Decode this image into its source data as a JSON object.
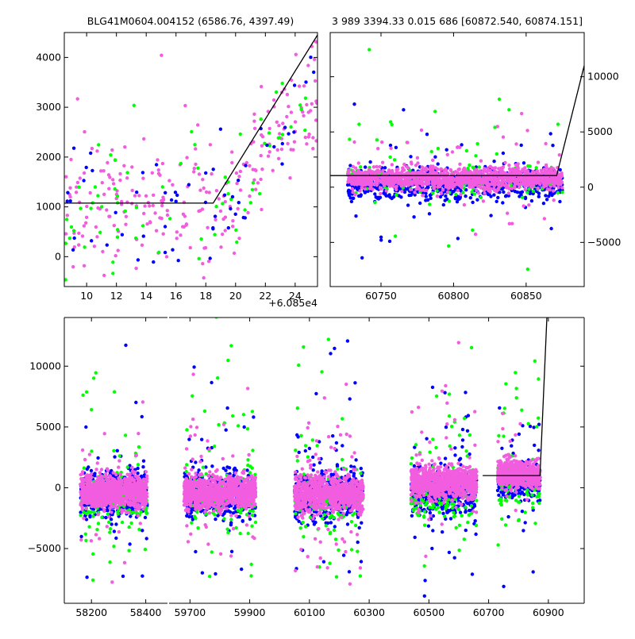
{
  "chart_data": [
    {
      "name": "zoom-left",
      "type": "scatter",
      "title": "BLG41M0604.004152 (6586.76, 4397.49)",
      "xlim": [
        8.5,
        25.5
      ],
      "ylim": [
        -600,
        4500
      ],
      "xticks": [
        10,
        12,
        14,
        16,
        18,
        20,
        22,
        24
      ],
      "xtick_labels": [
        "10",
        "12",
        "14",
        "16",
        "18",
        "20",
        "22",
        "24"
      ],
      "yticks": [
        0,
        1000,
        2000,
        3000,
        4000
      ],
      "ytick_labels": [
        "0",
        "1000",
        "2000",
        "3000",
        "4000"
      ],
      "x_offset_label": "+6.085e4",
      "ytick_side": "left",
      "model_line": {
        "x": [
          8.5,
          18.5,
          25.5
        ],
        "y": [
          1075,
          1075,
          4450
        ]
      },
      "scatter_groups": [
        {
          "color": "#f25de0",
          "count": 260,
          "segments": [
            [
              8.5,
              18.5,
              1075,
              600,
              0.07
            ],
            [
              18.5,
              25.5,
              1075,
              700,
              0.06
            ]
          ]
        },
        {
          "color": "#00ff00",
          "count": 70,
          "segments": [
            [
              8.5,
              18.5,
              1075,
              700,
              0.06
            ],
            [
              18.5,
              25.5,
              1075,
              700,
              0.06
            ]
          ]
        },
        {
          "color": "#0000ff",
          "count": 60,
          "segments": [
            [
              8.5,
              18.5,
              900,
              700,
              0.06
            ],
            [
              18.5,
              25.5,
              1000,
              700,
              0.06
            ]
          ]
        }
      ]
    },
    {
      "name": "zoom-right",
      "type": "scatter",
      "title": "3 989 3394.33 0.015 686 [60872.540, 60874.151]",
      "xlim": [
        60715,
        60890
      ],
      "ylim": [
        -9000,
        14000
      ],
      "xticks": [
        60750,
        60800,
        60850
      ],
      "xtick_labels": [
        "60750",
        "60800",
        "60850"
      ],
      "yticks": [
        -5000,
        0,
        5000,
        10000
      ],
      "ytick_labels": [
        "−5000",
        "0",
        "5000",
        "10000"
      ],
      "ytick_side": "right",
      "model_line": {
        "x": [
          60715,
          60871,
          60890
        ],
        "y": [
          1050,
          1050,
          11000
        ]
      },
      "scatter_groups": [
        {
          "color": "#0000ff",
          "count": 700,
          "segments": [
            [
              60727,
              60875,
              300,
              700,
              0.05
            ]
          ]
        },
        {
          "color": "#00ff00",
          "count": 160,
          "segments": [
            [
              60727,
              60875,
              500,
              800,
              0.22
            ]
          ]
        },
        {
          "color": "#f25de0",
          "count": 1300,
          "segments": [
            [
              60727,
              60875,
              800,
              500,
              0.05
            ]
          ]
        }
      ]
    },
    {
      "name": "full-lightcurve",
      "type": "scatter",
      "xlim": [
        0,
        1
      ],
      "ylim": [
        -9500,
        14000
      ],
      "x_breaks": [
        {
          "from": 58100,
          "to": 58480,
          "px": [
            81,
            211
          ]
        },
        {
          "from": 59630,
          "to": 61020,
          "px": [
            213,
            736
          ]
        }
      ],
      "xticks": [
        58200,
        58400,
        59700,
        59900,
        60100,
        60300,
        60500,
        60700,
        60900
      ],
      "xtick_labels": [
        "58200",
        "58400",
        "59700",
        "59900",
        "60100",
        "60300",
        "60500",
        "60700",
        "60900"
      ],
      "yticks": [
        -5000,
        0,
        5000,
        10000
      ],
      "ytick_labels": [
        "−5000",
        "0",
        "5000",
        "10000"
      ],
      "ytick_side": "left",
      "model_line": {
        "x": [
          60680,
          60872,
          60895
        ],
        "y": [
          1000,
          1000,
          14000
        ]
      },
      "scatter_groups": [
        {
          "color": "#0000ff",
          "count": 2200,
          "segments": [
            [
              58160,
              58405,
              -500,
              900,
              0.05
            ],
            [
              59680,
              59920,
              -600,
              900,
              0.06
            ],
            [
              60050,
              60280,
              -700,
              1000,
              0.08
            ],
            [
              60440,
              60660,
              -300,
              900,
              0.08
            ],
            [
              60730,
              60872,
              600,
              700,
              0.1
            ]
          ]
        },
        {
          "color": "#00ff00",
          "count": 700,
          "segments": [
            [
              58160,
              58405,
              -900,
              1100,
              0.25
            ],
            [
              59680,
              59920,
              -900,
              1100,
              0.25
            ],
            [
              60050,
              60280,
              -1100,
              1200,
              0.28
            ],
            [
              60440,
              60660,
              -700,
              1100,
              0.25
            ],
            [
              60730,
              60872,
              0,
              1000,
              0.25
            ]
          ]
        },
        {
          "color": "#f25de0",
          "count": 4200,
          "segments": [
            [
              58160,
              58405,
              -400,
              650,
              0.05
            ],
            [
              59680,
              59920,
              -400,
              650,
              0.06
            ],
            [
              60050,
              60280,
              -500,
              700,
              0.08
            ],
            [
              60440,
              60660,
              400,
              650,
              0.08
            ],
            [
              60730,
              60872,
              1100,
              550,
              0.05
            ]
          ]
        }
      ]
    }
  ]
}
